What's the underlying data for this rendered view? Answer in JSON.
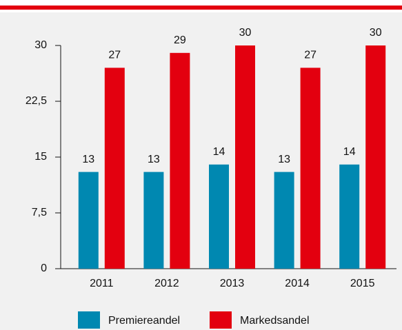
{
  "chart_data": {
    "type": "bar",
    "categories": [
      "2011",
      "2012",
      "2013",
      "2014",
      "2015"
    ],
    "series": [
      {
        "name": "Premiereandel",
        "color": "#0088b1",
        "values": [
          13,
          13,
          14,
          13,
          14
        ]
      },
      {
        "name": "Markedsandel",
        "color": "#e3000f",
        "values": [
          27,
          29,
          30,
          27,
          30
        ]
      }
    ],
    "ylim": [
      0,
      30
    ],
    "yticks": [
      0,
      {
        "value": 7.5,
        "label": "7,5"
      },
      15,
      {
        "value": 22.5,
        "label": "22,5"
      },
      30
    ],
    "legend": "bottom"
  }
}
